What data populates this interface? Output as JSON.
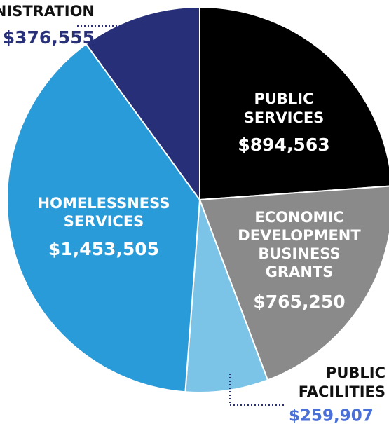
{
  "chart_data": {
    "type": "pie",
    "categories": [
      "PUBLIC SERVICES",
      "ECONOMIC DEVELOPMENT BUSINESS GRANTS",
      "PUBLIC FACILITIES",
      "HOMELESSNESS SERVICES",
      "ADMINISTRATION"
    ],
    "values": [
      894563,
      765250,
      259907,
      1453505,
      376555
    ],
    "value_labels": [
      "$894,563",
      "$765,250",
      "$259,907",
      "$1,453,505",
      "$376,555"
    ],
    "colors": [
      "#000000",
      "#8a8a8a",
      "#7cc3e8",
      "#2a9bd9",
      "#262f78"
    ]
  }
}
